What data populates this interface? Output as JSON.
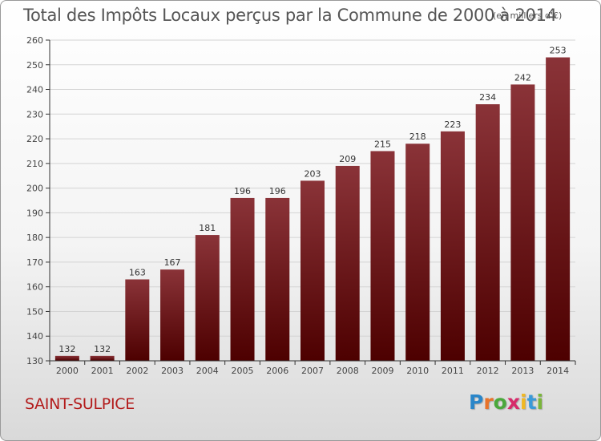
{
  "title": "Total des Impôts Locaux perçus par la Commune de 2000 à 2014",
  "unit": "(en milliers d'€)",
  "commune": "SAINT-SULPICE",
  "brand": {
    "letters": [
      "P",
      "r",
      "o",
      "x",
      "i",
      "t",
      "i"
    ],
    "colors": [
      "#2a86c9",
      "#e8732a",
      "#4aa83c",
      "#d62a6a",
      "#f0b823",
      "#3a9ad9",
      "#7ab53a"
    ]
  },
  "colors": {
    "bar_top": "#8a3338",
    "bar_bottom": "#4d0000",
    "axis": "#333333",
    "grid": "#d4d4d4"
  },
  "chart_data": {
    "type": "bar",
    "title": "Total des Impôts Locaux perçus par la Commune de 2000 à 2014",
    "ylabel": "",
    "xlabel": "",
    "categories": [
      "2000",
      "2001",
      "2002",
      "2003",
      "2004",
      "2005",
      "2006",
      "2007",
      "2008",
      "2009",
      "2010",
      "2011",
      "2012",
      "2013",
      "2014"
    ],
    "values": [
      132,
      132,
      163,
      167,
      181,
      196,
      196,
      203,
      209,
      215,
      218,
      223,
      234,
      242,
      253
    ],
    "ylim": [
      130,
      260
    ],
    "yticks": [
      130,
      140,
      150,
      160,
      170,
      180,
      190,
      200,
      210,
      220,
      230,
      240,
      250,
      260
    ],
    "grid": true,
    "legend": "none"
  }
}
